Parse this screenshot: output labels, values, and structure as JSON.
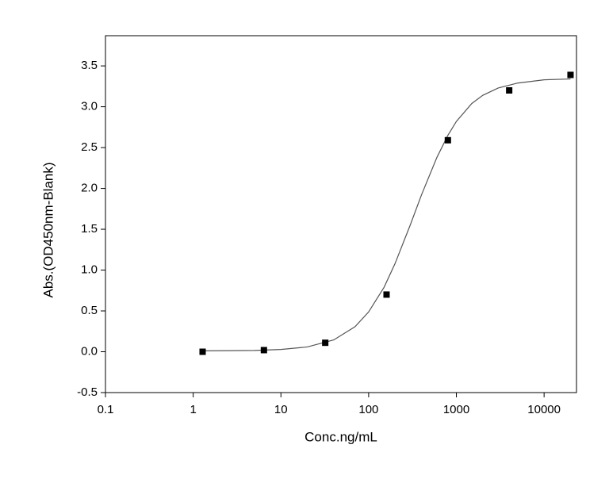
{
  "chart_data": {
    "type": "scatter",
    "xlabel": "Conc.ng/mL",
    "ylabel": "Abs.(OD450nm-Blank)",
    "xscale": "log",
    "xlim": [
      0.1,
      23400
    ],
    "ylim": [
      -0.5,
      3.87
    ],
    "xticks": [
      0.1,
      1,
      10,
      100,
      1000,
      10000
    ],
    "yticks": [
      -0.5,
      {
        "value": 0,
        "label": "0.0"
      },
      0.5,
      {
        "value": 1,
        "label": "1.0"
      },
      1.5,
      {
        "value": 2,
        "label": "2.0"
      },
      2.5,
      {
        "value": 3,
        "label": "3.0"
      },
      3.5
    ],
    "series": [
      {
        "mode": "markers",
        "color": "#000000",
        "x": [
          1.28,
          6.4,
          32,
          160,
          800,
          4000,
          20000
        ],
        "values": [
          0.0,
          0.02,
          0.11,
          0.7,
          2.59,
          3.2,
          3.39
        ]
      },
      {
        "mode": "line",
        "color": "#555555",
        "x": [
          1.28,
          5,
          10,
          20,
          40,
          70,
          100,
          150,
          200,
          300,
          400,
          600,
          800,
          1000,
          1500,
          2000,
          3000,
          5000,
          10000,
          20000
        ],
        "values": [
          0.011,
          0.016,
          0.028,
          0.059,
          0.145,
          0.307,
          0.488,
          0.79,
          1.08,
          1.56,
          1.92,
          2.38,
          2.65,
          2.82,
          3.04,
          3.14,
          3.23,
          3.29,
          3.33,
          3.34
        ]
      }
    ]
  }
}
